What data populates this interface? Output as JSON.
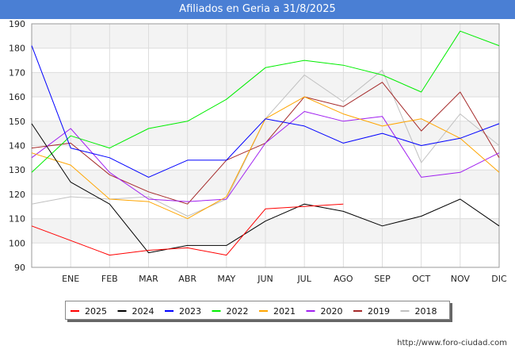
{
  "chart_data": {
    "type": "line",
    "title": "Afiliados en Geria a 31/8/2025",
    "categories": [
      "",
      "ENE",
      "FEB",
      "MAR",
      "ABR",
      "MAY",
      "JUN",
      "JUL",
      "AGO",
      "SEP",
      "OCT",
      "NOV",
      "DIC"
    ],
    "ylim": [
      90,
      190
    ],
    "yticks": [
      90,
      100,
      110,
      120,
      130,
      140,
      150,
      160,
      170,
      180,
      190
    ],
    "xlabel": "",
    "ylabel": "",
    "grid": true,
    "legend_position": "bottom",
    "series": [
      {
        "name": "2025",
        "color": "#ff0000",
        "values": [
          107,
          101,
          95,
          97,
          98,
          95,
          114,
          115,
          116,
          null,
          null,
          null,
          null
        ]
      },
      {
        "name": "2024",
        "color": "#000000",
        "values": [
          149,
          125,
          116,
          96,
          99,
          99,
          109,
          116,
          113,
          107,
          111,
          118,
          107
        ]
      },
      {
        "name": "2023",
        "color": "#0000ff",
        "values": [
          181,
          139,
          135,
          127,
          134,
          134,
          151,
          148,
          141,
          145,
          140,
          143,
          149
        ]
      },
      {
        "name": "2022",
        "color": "#00ee00",
        "values": [
          129,
          144,
          139,
          147,
          150,
          159,
          172,
          175,
          173,
          169,
          162,
          187,
          181
        ]
      },
      {
        "name": "2021",
        "color": "#ffa500",
        "values": [
          137,
          132,
          118,
          117,
          110,
          119,
          151,
          160,
          153,
          148,
          151,
          143,
          129
        ]
      },
      {
        "name": "2020",
        "color": "#a020f0",
        "values": [
          135,
          147,
          129,
          118,
          117,
          118,
          141,
          154,
          150,
          152,
          127,
          129,
          137
        ]
      },
      {
        "name": "2019",
        "color": "#a52a2a",
        "values": [
          139,
          141,
          128,
          121,
          116,
          134,
          141,
          160,
          156,
          166,
          146,
          162,
          135
        ]
      },
      {
        "name": "2018",
        "color": "#c0c0c0",
        "values": [
          116,
          119,
          118,
          119,
          111,
          118,
          151,
          169,
          158,
          171,
          133,
          153,
          140
        ]
      }
    ]
  },
  "footer": {
    "url": "http://www.foro-ciudad.com"
  }
}
